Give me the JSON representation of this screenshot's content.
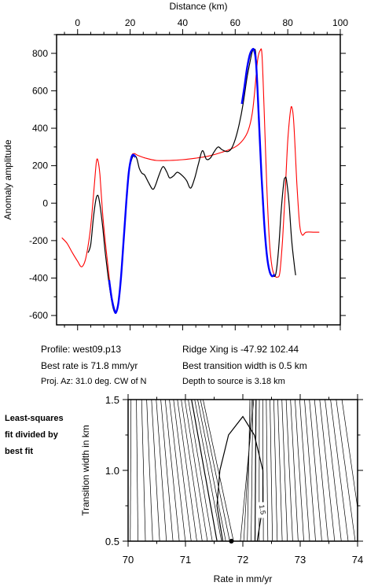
{
  "info": {
    "profile": "Profile: west09.p13",
    "best_rate": "Best rate is 71.8 mm/yr",
    "proj_az": "Proj. Az: 31.0 deg. CW of N",
    "ridge_xing": "Ridge Xing is -47.92 102.44",
    "best_transition": "Best transition width is 0.5 km",
    "depth": "Depth to source is   3.18 km",
    "note_line1": "Least-squares",
    "note_line2": "fit divided by",
    "note_line3": "best fit"
  },
  "colors": {
    "observed": "#000000",
    "model": "#ff0000",
    "fit": "#0000ff"
  },
  "chart_data": [
    {
      "type": "line",
      "title": "",
      "xlabel": "Distance (km)",
      "ylabel": "Anomaly amplitude",
      "xlim": [
        -8,
        100
      ],
      "ylim": [
        -650,
        900
      ],
      "x_ticks": [
        0,
        20,
        40,
        60,
        80,
        100
      ],
      "y_ticks": [
        -600,
        -400,
        -200,
        0,
        200,
        400,
        600,
        800
      ],
      "x_tick_labels": [
        "0",
        "20",
        "40",
        "60",
        "80",
        "100"
      ],
      "y_tick_labels": [
        "-600",
        "-400",
        "-200",
        "0",
        "200",
        "400",
        "600",
        "800"
      ],
      "series": [
        {
          "color": "red",
          "points": [
            [
              -6,
              -185
            ],
            [
              -4,
              -215
            ],
            [
              -2,
              -265
            ],
            [
              0,
              -310
            ],
            [
              1.5,
              -340
            ],
            [
              3,
              -300
            ],
            [
              4.5,
              -180
            ],
            [
              5.5,
              -50
            ],
            [
              6.5,
              120
            ],
            [
              7.2,
              225
            ],
            [
              7.8,
              225
            ],
            [
              8.5,
              150
            ],
            [
              9.5,
              -50
            ],
            [
              10.5,
              -200
            ],
            [
              11.5,
              -330
            ],
            [
              12.5,
              -450
            ],
            [
              13.5,
              -540
            ],
            [
              14.5,
              -580
            ],
            [
              15.5,
              -540
            ],
            [
              16.5,
              -400
            ],
            [
              17.5,
              -200
            ],
            [
              18.5,
              0
            ],
            [
              19.5,
              170
            ],
            [
              20.5,
              250
            ],
            [
              21.5,
              265
            ],
            [
              23,
              255
            ],
            [
              26,
              240
            ],
            [
              30,
              228
            ],
            [
              35,
              228
            ],
            [
              40,
              232
            ],
            [
              45,
              240
            ],
            [
              50,
              252
            ],
            [
              55,
              272
            ],
            [
              60,
              300
            ],
            [
              63,
              338
            ],
            [
              65,
              390
            ],
            [
              66.5,
              480
            ],
            [
              67.5,
              610
            ],
            [
              68.5,
              760
            ],
            [
              69.5,
              815
            ],
            [
              70.2,
              790
            ],
            [
              71,
              500
            ],
            [
              72,
              100
            ],
            [
              73,
              -200
            ],
            [
              74,
              -340
            ],
            [
              75,
              -385
            ],
            [
              76,
              -395
            ],
            [
              77,
              -370
            ],
            [
              78,
              -200
            ],
            [
              79,
              50
            ],
            [
              80,
              330
            ],
            [
              81,
              490
            ],
            [
              81.6,
              510
            ],
            [
              82.3,
              430
            ],
            [
              83.5,
              100
            ],
            [
              84.5,
              -110
            ],
            [
              85.5,
              -170
            ],
            [
              87,
              -155
            ],
            [
              90,
              -155
            ],
            [
              92,
              -155
            ]
          ]
        },
        {
          "color": "black",
          "points": [
            [
              4,
              -265
            ],
            [
              5,
              -220
            ],
            [
              6,
              -80
            ],
            [
              7,
              20
            ],
            [
              7.8,
              40
            ],
            [
              8.5,
              -10
            ],
            [
              9.5,
              -120
            ],
            [
              10.5,
              -260
            ],
            [
              11.5,
              -380
            ],
            [
              12.5,
              -480
            ],
            [
              13.5,
              -560
            ],
            [
              14.5,
              -585
            ],
            [
              15.5,
              -530
            ],
            [
              16.5,
              -400
            ],
            [
              17.5,
              -210
            ],
            [
              18.5,
              0
            ],
            [
              19.5,
              160
            ],
            [
              20.5,
              230
            ],
            [
              21.5,
              255
            ],
            [
              22.5,
              240
            ],
            [
              23.5,
              185
            ],
            [
              24.5,
              160
            ],
            [
              25.5,
              150
            ],
            [
              27,
              110
            ],
            [
              28.5,
              75
            ],
            [
              29.5,
              90
            ],
            [
              31,
              150
            ],
            [
              32.5,
              195
            ],
            [
              34,
              165
            ],
            [
              35,
              135
            ],
            [
              36.5,
              145
            ],
            [
              38,
              165
            ],
            [
              40,
              145
            ],
            [
              41.5,
              120
            ],
            [
              43,
              80
            ],
            [
              44.5,
              130
            ],
            [
              46,
              210
            ],
            [
              47.5,
              280
            ],
            [
              49,
              235
            ],
            [
              50.5,
              240
            ],
            [
              52,
              275
            ],
            [
              53.5,
              300
            ],
            [
              55,
              285
            ],
            [
              57,
              275
            ],
            [
              58.5,
              290
            ],
            [
              60,
              340
            ],
            [
              61.5,
              420
            ],
            [
              63,
              530
            ],
            [
              64.5,
              670
            ],
            [
              65.5,
              745
            ],
            [
              66.5,
              810
            ],
            [
              67.2,
              820
            ],
            [
              67.8,
              800
            ],
            [
              68.5,
              620
            ],
            [
              69.5,
              300
            ],
            [
              70.5,
              0
            ],
            [
              71.5,
              -200
            ],
            [
              72.5,
              -320
            ],
            [
              73.5,
              -375
            ],
            [
              74.5,
              -390
            ],
            [
              75.5,
              -375
            ],
            [
              76.5,
              -250
            ],
            [
              77.5,
              -40
            ],
            [
              78.5,
              110
            ],
            [
              79,
              135
            ],
            [
              79.5,
              125
            ],
            [
              80.5,
              0
            ],
            [
              81.5,
              -200
            ],
            [
              82.5,
              -330
            ],
            [
              83,
              -385
            ]
          ]
        },
        {
          "color": "blue",
          "points": [
            [
              12,
              -410
            ],
            [
              13,
              -510
            ],
            [
              14,
              -570
            ],
            [
              14.6,
              -585
            ],
            [
              15.5,
              -535
            ],
            [
              16.5,
              -400
            ],
            [
              17.5,
              -205
            ],
            [
              18.5,
              0
            ],
            [
              19.5,
              165
            ],
            [
              20.5,
              245
            ],
            [
              21.3,
              258
            ],
            [
              22,
              245
            ],
            [
              62.5,
              530
            ],
            [
              63.5,
              620
            ],
            [
              64.5,
              720
            ],
            [
              65.5,
              790
            ],
            [
              66.5,
              820
            ],
            [
              67.2,
              815
            ],
            [
              68,
              740
            ],
            [
              69,
              450
            ],
            [
              70,
              150
            ],
            [
              71,
              -100
            ],
            [
              72,
              -270
            ],
            [
              73,
              -360
            ],
            [
              74,
              -390
            ],
            [
              75,
              -380
            ]
          ]
        }
      ]
    },
    {
      "type": "contour",
      "title": "",
      "xlabel": "Rate in mm/yr",
      "ylabel": "Transition width in km",
      "xlim": [
        70,
        74
      ],
      "ylim": [
        0.5,
        1.5
      ],
      "x_ticks": [
        70,
        71,
        72,
        73,
        74
      ],
      "y_ticks": [
        0.5,
        1.0,
        1.5
      ],
      "x_tick_labels": [
        "70",
        "71",
        "72",
        "73",
        "74"
      ],
      "y_tick_labels": [
        "0.5",
        "1.0",
        "1.5"
      ],
      "contour_label": "1.5",
      "best_fit_point": [
        71.8,
        0.5
      ],
      "center_rate": 71.9
    }
  ]
}
